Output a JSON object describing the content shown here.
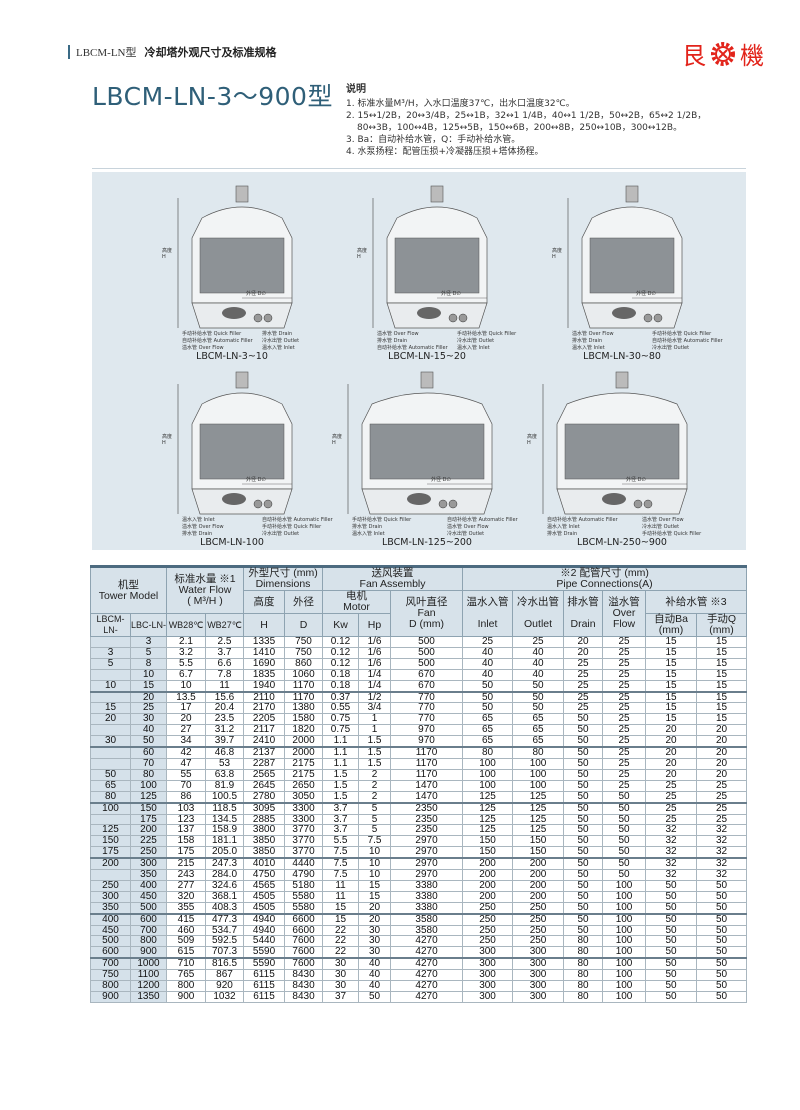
{
  "header": {
    "series": "LBCM-LN型",
    "title": "冷却塔外观尺寸及标准规格",
    "logo_text": [
      "艮",
      "機"
    ],
    "brand_color": "#e2231a"
  },
  "model_title": "LBCM-LN-3～900型",
  "notes": {
    "title": "说明",
    "items": [
      "1. 标准水量M³/H，入水口温度37℃，出水口温度32℃。",
      "2. 15↔1/2B，20↔3/4B，25↔1B，32↔1 1/4B，40↔1 1/2B，50↔2B，65↔2 1/2B，",
      "80↔3B，100↔4B，125↔5B，150↔6B，200↔8B，250↔10B，300↔12B。",
      "3. Ba：自动补给水管，Q：手动补给水管。",
      "4. 水泵扬程：配管压损+冷凝器压损+塔体扬程。"
    ]
  },
  "diagrams": [
    {
      "caption": "LBCM-LN-3~10",
      "height": "高度 H",
      "dia": "外径 D∅",
      "labels": [
        "手动补给水管 Quick Filler",
        "自动补给水管 Automatic Filler",
        "溢水管 Over Flow",
        "排水管 Drain",
        "冷水出管 Outlet",
        "温水入管 Inlet"
      ]
    },
    {
      "caption": "LBCM-LN-15~20",
      "height": "高度 H",
      "dia": "外径 D∅",
      "labels": [
        "溢水管 Over Flow",
        "排水管 Drain",
        "自动补给水管 Automatic Filler",
        "手动补给水管 Quick Filler",
        "冷水出管 Outlet",
        "温水入管 Inlet"
      ]
    },
    {
      "caption": "LBCM-LN-30~80",
      "height": "高度 H",
      "dia": "外径 D∅",
      "labels": [
        "溢水管 Over Flow",
        "排水管 Drain",
        "温水入管 Inlet",
        "手动补给水管 Quick Filler",
        "自动补给水管 Automatic Filler",
        "冷水出管 Outlet"
      ]
    },
    {
      "caption": "LBCM-LN-100",
      "height": "高度 H",
      "dia": "外径 D∅",
      "labels": [
        "温水入管 Inlet",
        "溢水管 Over Flow",
        "排水管 Drain",
        "自动补给水管 Automatic Filler",
        "手动补给水管 Quick Filler",
        "冷水出管 Outlet"
      ]
    },
    {
      "caption": "LBCM-LN-125~200",
      "height": "高度 H",
      "dia": "外径 D∅",
      "labels": [
        "手动补给水管 Quick Filler",
        "排水管 Drain",
        "温水入管 Inlet",
        "自动补给水管 Automatic Filler",
        "溢水管 Over Flow",
        "冷水出管 Outlet"
      ]
    },
    {
      "caption": "LBCM-LN-250~900",
      "height": "高度 H",
      "dia": "外径 D∅",
      "labels": [
        "自动补给水管 Automatic Filler",
        "温水入管 Inlet",
        "排水管 Drain",
        "溢水管 Over Flow",
        "冷水出管 Outlet",
        "手动补给水管 Quick Filler"
      ]
    }
  ],
  "table": {
    "h_model": "机型",
    "h_model_en": "Tower Model",
    "h_flow": "标准水量 ※1",
    "h_flow_en": "Water Flow",
    "h_flow_unit": "( M³/H )",
    "h_dim": "外型尺寸 (mm)",
    "h_dim_en": "Dimensions",
    "h_fan": "送风装置",
    "h_fan_en": "Fan Assembly",
    "h_pipe": "※2 配管尺寸 (mm)",
    "h_pipe_en": "Pipe Connections(A)",
    "h_height": "高度",
    "h_dia": "外径",
    "h_motor": "电机",
    "h_motor_en": "Motor",
    "h_fandia": "风叶直径",
    "h_fandia_en": "Fan",
    "h_fandia_unit": "D (mm)",
    "h_inlet": "温水入管",
    "h_outlet": "冷水出管",
    "h_drain": "排水管",
    "h_over": "溢水管",
    "h_make": "补给水管 ※3",
    "h_inlet_en": "Inlet",
    "h_outlet_en": "Outlet",
    "h_drain_en": "Drain",
    "h_over_en": "Over Flow",
    "h_ba": "自动Ba (mm)",
    "h_q": "手动Q (mm)",
    "h_lbcm": "LBCM-LN-",
    "h_lbc": "LBC-LN-",
    "h_wb28": "WB28℃",
    "h_wb27": "WB27℃",
    "h_H": "H",
    "h_D": "D",
    "h_kw": "Kw",
    "h_hp": "Hp",
    "rows": [
      [
        "",
        "3",
        "2.1",
        "2.5",
        "1335",
        "750",
        "0.12",
        "1/6",
        "500",
        "25",
        "25",
        "20",
        "25",
        "15",
        "15"
      ],
      [
        "3",
        "5",
        "3.2",
        "3.7",
        "1410",
        "750",
        "0.12",
        "1/6",
        "500",
        "40",
        "40",
        "20",
        "25",
        "15",
        "15"
      ],
      [
        "5",
        "8",
        "5.5",
        "6.6",
        "1690",
        "860",
        "0.12",
        "1/6",
        "500",
        "40",
        "40",
        "25",
        "25",
        "15",
        "15"
      ],
      [
        "",
        "10",
        "6.7",
        "7.8",
        "1835",
        "1060",
        "0.18",
        "1/4",
        "670",
        "40",
        "40",
        "25",
        "25",
        "15",
        "15"
      ],
      [
        "10",
        "15",
        "10",
        "11",
        "1940",
        "1170",
        "0.18",
        "1/4",
        "670",
        "50",
        "50",
        "25",
        "25",
        "15",
        "15"
      ],
      [
        "",
        "20",
        "13.5",
        "15.6",
        "2110",
        "1170",
        "0.37",
        "1/2",
        "770",
        "50",
        "50",
        "25",
        "25",
        "15",
        "15"
      ],
      [
        "15",
        "25",
        "17",
        "20.4",
        "2170",
        "1380",
        "0.55",
        "3/4",
        "770",
        "50",
        "50",
        "25",
        "25",
        "15",
        "15"
      ],
      [
        "20",
        "30",
        "20",
        "23.5",
        "2205",
        "1580",
        "0.75",
        "1",
        "770",
        "65",
        "65",
        "50",
        "25",
        "15",
        "15"
      ],
      [
        "",
        "40",
        "27",
        "31.2",
        "2117",
        "1820",
        "0.75",
        "1",
        "970",
        "65",
        "65",
        "50",
        "25",
        "20",
        "20"
      ],
      [
        "30",
        "50",
        "34",
        "39.7",
        "2410",
        "2000",
        "1.1",
        "1.5",
        "970",
        "65",
        "65",
        "50",
        "25",
        "20",
        "20"
      ],
      [
        "",
        "60",
        "42",
        "46.8",
        "2137",
        "2000",
        "1.1",
        "1.5",
        "1170",
        "80",
        "80",
        "50",
        "25",
        "20",
        "20"
      ],
      [
        "",
        "70",
        "47",
        "53",
        "2287",
        "2175",
        "1.1",
        "1.5",
        "1170",
        "100",
        "100",
        "50",
        "25",
        "20",
        "20"
      ],
      [
        "50",
        "80",
        "55",
        "63.8",
        "2565",
        "2175",
        "1.5",
        "2",
        "1170",
        "100",
        "100",
        "50",
        "25",
        "20",
        "20"
      ],
      [
        "65",
        "100",
        "70",
        "81.9",
        "2645",
        "2650",
        "1.5",
        "2",
        "1470",
        "100",
        "100",
        "50",
        "25",
        "25",
        "25"
      ],
      [
        "80",
        "125",
        "86",
        "100.5",
        "2780",
        "3050",
        "1.5",
        "2",
        "1470",
        "125",
        "125",
        "50",
        "50",
        "25",
        "25"
      ],
      [
        "100",
        "150",
        "103",
        "118.5",
        "3095",
        "3300",
        "3.7",
        "5",
        "2350",
        "125",
        "125",
        "50",
        "50",
        "25",
        "25"
      ],
      [
        "",
        "175",
        "123",
        "134.5",
        "2885",
        "3300",
        "3.7",
        "5",
        "2350",
        "125",
        "125",
        "50",
        "50",
        "25",
        "25"
      ],
      [
        "125",
        "200",
        "137",
        "158.9",
        "3800",
        "3770",
        "3.7",
        "5",
        "2350",
        "125",
        "125",
        "50",
        "50",
        "32",
        "32"
      ],
      [
        "150",
        "225",
        "158",
        "181.1",
        "3850",
        "3770",
        "5.5",
        "7.5",
        "2970",
        "150",
        "150",
        "50",
        "50",
        "32",
        "32"
      ],
      [
        "175",
        "250",
        "175",
        "205.0",
        "3850",
        "3770",
        "7.5",
        "10",
        "2970",
        "150",
        "150",
        "50",
        "50",
        "32",
        "32"
      ],
      [
        "200",
        "300",
        "215",
        "247.3",
        "4010",
        "4440",
        "7.5",
        "10",
        "2970",
        "200",
        "200",
        "50",
        "50",
        "32",
        "32"
      ],
      [
        "",
        "350",
        "243",
        "284.0",
        "4750",
        "4790",
        "7.5",
        "10",
        "2970",
        "200",
        "200",
        "50",
        "50",
        "32",
        "32"
      ],
      [
        "250",
        "400",
        "277",
        "324.6",
        "4565",
        "5180",
        "11",
        "15",
        "3380",
        "200",
        "200",
        "50",
        "100",
        "50",
        "50"
      ],
      [
        "300",
        "450",
        "320",
        "368.1",
        "4505",
        "5580",
        "11",
        "15",
        "3380",
        "200",
        "200",
        "50",
        "100",
        "50",
        "50"
      ],
      [
        "350",
        "500",
        "355",
        "408.3",
        "4505",
        "5580",
        "15",
        "20",
        "3380",
        "250",
        "250",
        "50",
        "100",
        "50",
        "50"
      ],
      [
        "400",
        "600",
        "415",
        "477.3",
        "4940",
        "6600",
        "15",
        "20",
        "3580",
        "250",
        "250",
        "50",
        "100",
        "50",
        "50"
      ],
      [
        "450",
        "700",
        "460",
        "534.7",
        "4940",
        "6600",
        "22",
        "30",
        "3580",
        "250",
        "250",
        "50",
        "100",
        "50",
        "50"
      ],
      [
        "500",
        "800",
        "509",
        "592.5",
        "5440",
        "7600",
        "22",
        "30",
        "4270",
        "250",
        "250",
        "80",
        "100",
        "50",
        "50"
      ],
      [
        "600",
        "900",
        "615",
        "707.3",
        "5590",
        "7600",
        "22",
        "30",
        "4270",
        "300",
        "300",
        "80",
        "100",
        "50",
        "50"
      ],
      [
        "700",
        "1000",
        "710",
        "816.5",
        "5590",
        "7600",
        "30",
        "40",
        "4270",
        "300",
        "300",
        "80",
        "100",
        "50",
        "50"
      ],
      [
        "750",
        "1100",
        "765",
        "867",
        "6115",
        "8430",
        "30",
        "40",
        "4270",
        "300",
        "300",
        "80",
        "100",
        "50",
        "50"
      ],
      [
        "800",
        "1200",
        "800",
        "920",
        "6115",
        "8430",
        "30",
        "40",
        "4270",
        "300",
        "300",
        "80",
        "100",
        "50",
        "50"
      ],
      [
        "900",
        "1350",
        "900",
        "1032",
        "6115",
        "8430",
        "37",
        "50",
        "4270",
        "300",
        "300",
        "80",
        "100",
        "50",
        "50"
      ]
    ]
  }
}
